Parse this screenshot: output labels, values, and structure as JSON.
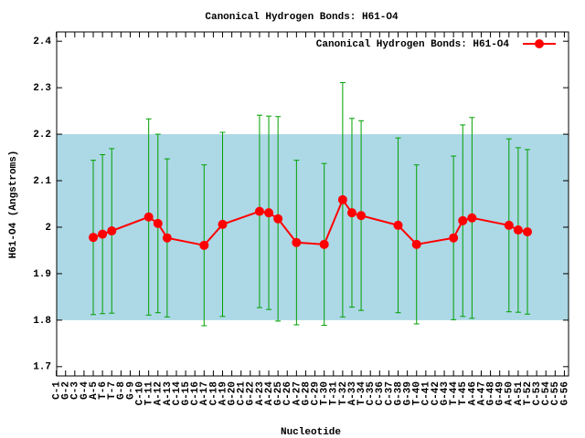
{
  "chart_data": {
    "type": "errorbar-line",
    "title": "Canonical Hydrogen Bonds: H61-O4",
    "x_label": "Nucleotide",
    "y_label": "H61-O4 (Angstroms)",
    "categories": [
      "C-1",
      "G-2",
      "C-3",
      "G-4",
      "A-5",
      "T-6",
      "T-7",
      "G-8",
      "G-9",
      "C-10",
      "T-11",
      "A-12",
      "A-13",
      "C-14",
      "G-15",
      "C-16",
      "A-17",
      "C-18",
      "A-19",
      "G-20",
      "C-21",
      "G-22",
      "A-23",
      "A-24",
      "G-25",
      "C-26",
      "A-27",
      "G-28",
      "C-29",
      "T-30",
      "T-31",
      "T-32",
      "A-33",
      "T-34",
      "C-35",
      "C-36",
      "C-37",
      "G-38",
      "G-39",
      "T-40",
      "C-41",
      "C-42",
      "G-43",
      "T-44",
      "T-45",
      "A-46",
      "A-47",
      "G-48",
      "G-49",
      "A-50",
      "A-51",
      "T-52",
      "C-53",
      "C-54",
      "C-55",
      "G-56"
    ],
    "ylim": [
      1.68,
      2.42
    ],
    "yticks": [
      1.7,
      1.8,
      1.9,
      2,
      2.1,
      2.2,
      2.3,
      2.4
    ],
    "band": [
      1.8,
      2.2
    ],
    "band_color": "#add8e6",
    "legend_position": "top-right",
    "series": [
      {
        "name": "Canonical Hydrogen Bonds: H61-O4",
        "color": "#ff0000",
        "error_color": "#00a000",
        "x": [
          "A-5",
          "T-6",
          "T-7",
          "T-11",
          "A-12",
          "A-13",
          "A-17",
          "A-19",
          "A-23",
          "A-24",
          "G-25",
          "A-27",
          "T-30",
          "T-32",
          "A-33",
          "T-34",
          "G-38",
          "T-40",
          "T-44",
          "T-45",
          "A-46",
          "A-50",
          "A-51",
          "T-52"
        ],
        "values": [
          1.978,
          1.985,
          1.992,
          2.022,
          2.008,
          1.977,
          1.961,
          2.006,
          2.034,
          2.031,
          2.018,
          1.967,
          1.963,
          2.059,
          2.031,
          2.025,
          2.004,
          1.963,
          1.977,
          2.014,
          2.02,
          2.004,
          1.994,
          1.99
        ],
        "errors": [
          0.166,
          0.171,
          0.177,
          0.211,
          0.192,
          0.17,
          0.173,
          0.198,
          0.207,
          0.208,
          0.22,
          0.177,
          0.174,
          0.252,
          0.203,
          0.204,
          0.188,
          0.171,
          0.176,
          0.206,
          0.216,
          0.186,
          0.177,
          0.177
        ]
      }
    ]
  }
}
